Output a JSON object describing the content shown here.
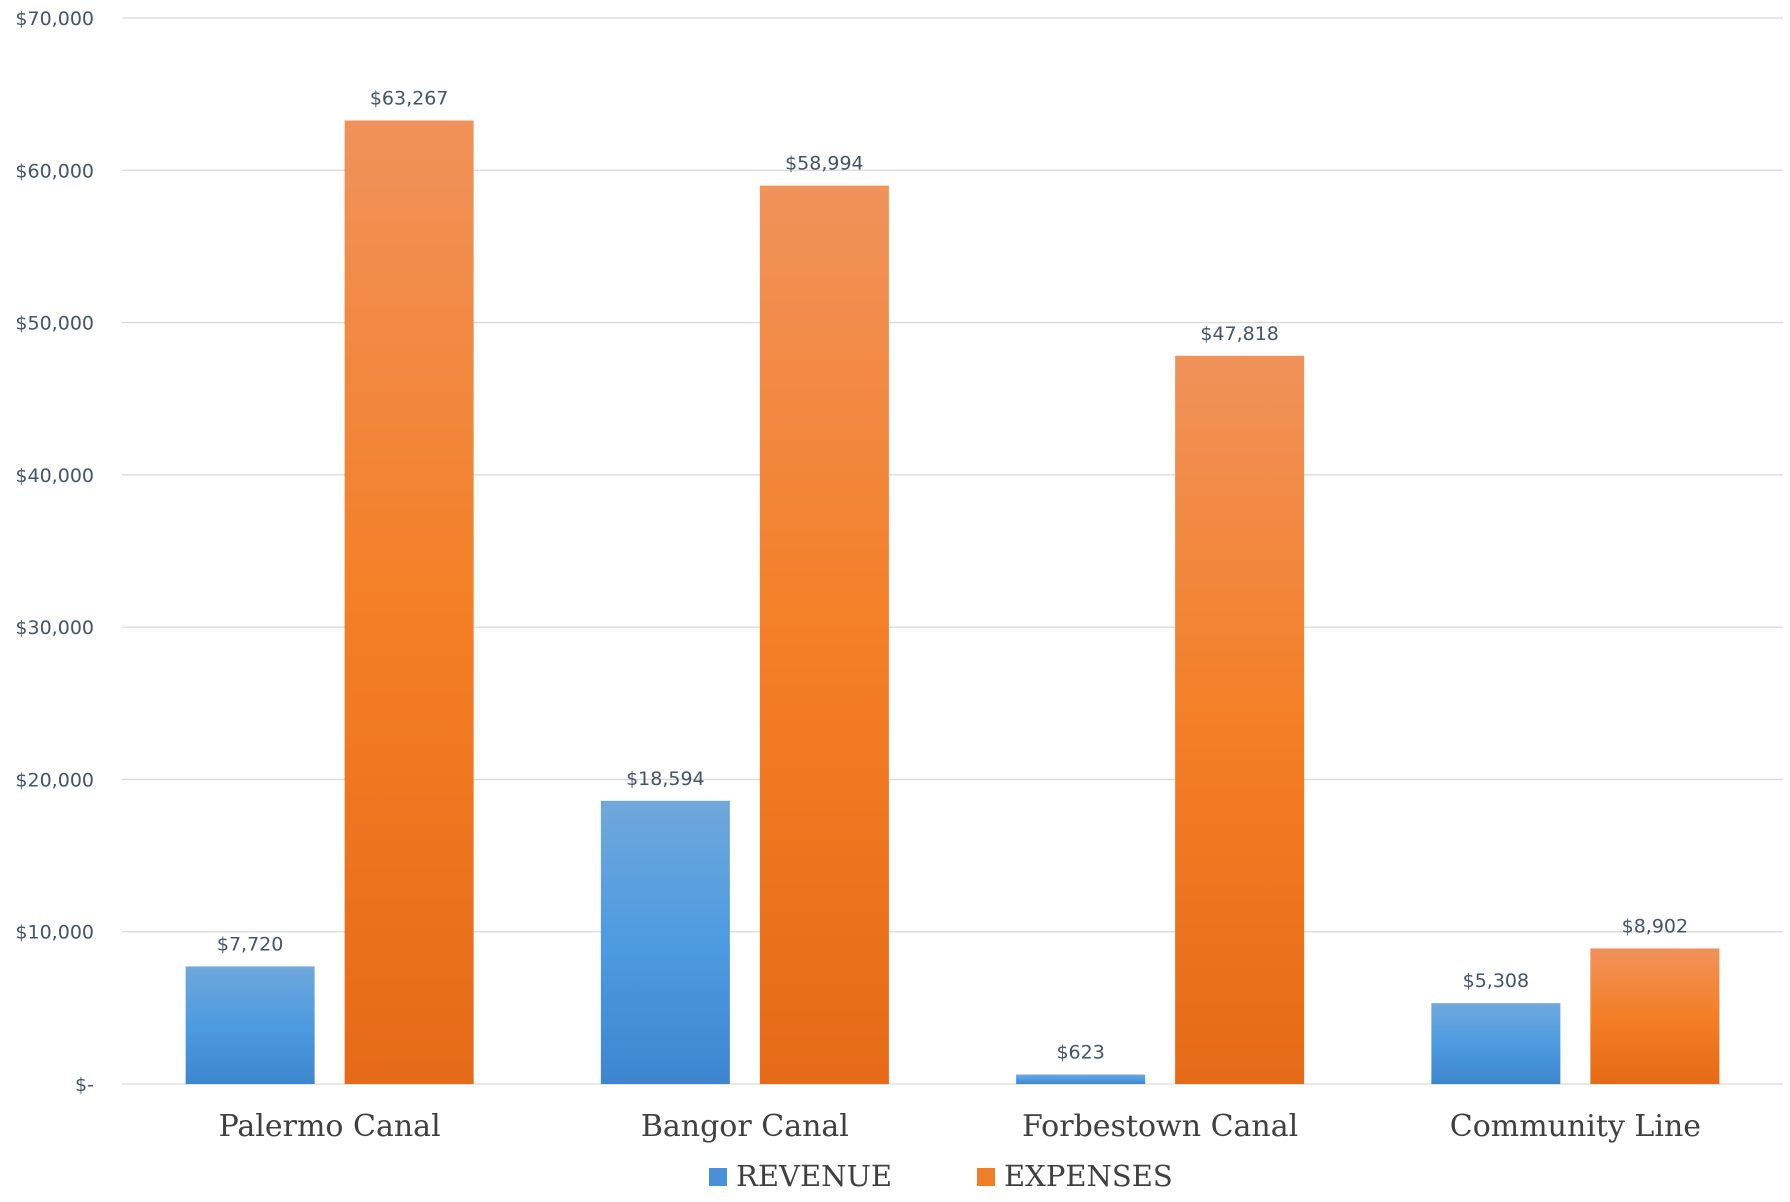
{
  "chart_data": {
    "type": "bar",
    "title": "",
    "xlabel": "",
    "ylabel": "",
    "categories": [
      "Palermo Canal",
      "Bangor Canal",
      "Forbestown Canal",
      "Community Line"
    ],
    "series": [
      {
        "name": "REVENUE",
        "values": [
          7720,
          18594,
          623,
          5308
        ],
        "labels": [
          "$7,720",
          "$18,594",
          "$623",
          "$5,308"
        ],
        "color": "#4a90d9"
      },
      {
        "name": "EXPENSES",
        "values": [
          63267,
          58994,
          47818,
          8902
        ],
        "labels": [
          "$63,267",
          "$58,994",
          "$47,818",
          "$8,902"
        ],
        "color": "#f07d28"
      }
    ],
    "ylim": [
      0,
      70000
    ],
    "yticks": [
      0,
      10000,
      20000,
      30000,
      40000,
      50000,
      60000,
      70000
    ],
    "ytick_labels": [
      "$-",
      "$10,000",
      "$20,000",
      "$30,000",
      "$40,000",
      "$50,000",
      "$60,000",
      "$70,000"
    ],
    "grid": true,
    "legend_position": "bottom-center"
  }
}
